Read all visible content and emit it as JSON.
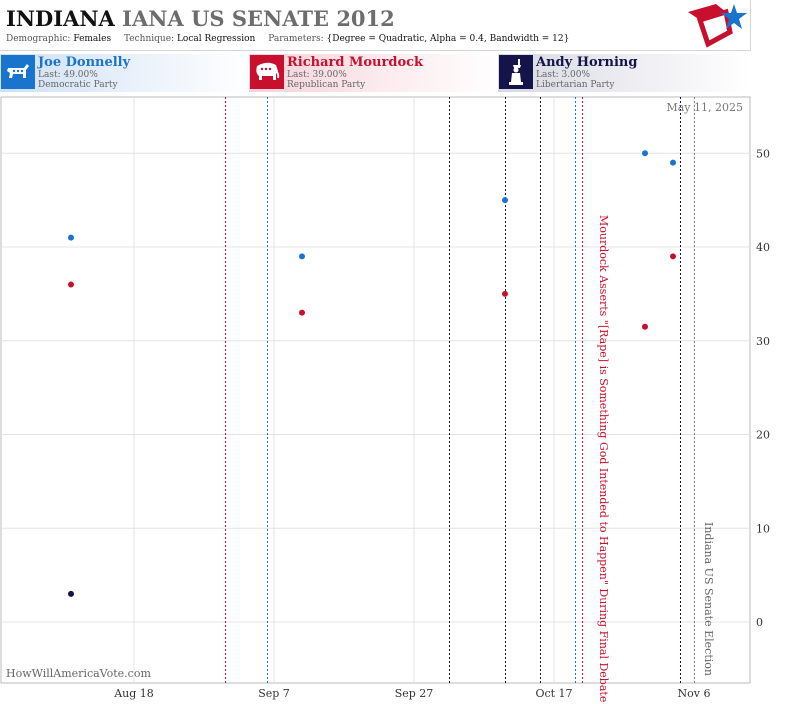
{
  "header": {
    "title_state": "INDIANA",
    "title_rest": "IANA US SENATE 2012",
    "demographic_label": "Demographic:",
    "demographic_value": "Females",
    "technique_label": "Technique:",
    "technique_value": "Local Regression",
    "parameters_label": "Parameters:",
    "parameters_value": "{Degree = Quadratic, Alpha = 0.4, Bandwidth = 12}"
  },
  "candidates": [
    {
      "name": "Joe Donnelly",
      "last": "Last: 49.00%",
      "party": "Democratic Party",
      "color": "#1874cd",
      "icon": "donkey-icon"
    },
    {
      "name": "Richard Mourdock",
      "last": "Last: 39.00%",
      "party": "Republican Party",
      "color": "#c8102e",
      "icon": "elephant-icon"
    },
    {
      "name": "Andy Horning",
      "last": "Last: 3.00%",
      "party": "Libertarian Party",
      "color": "#14144a",
      "icon": "statue-of-liberty-icon"
    }
  ],
  "date_stamp": "May 11, 2025",
  "watermark": "HowWillAmericaVote.com",
  "chart_data": {
    "type": "scatter",
    "x_axis": {
      "type": "date",
      "range": [
        "2012-07-30",
        "2012-11-14"
      ],
      "ticks": [
        {
          "date": "2012-08-18",
          "label": "Aug 18"
        },
        {
          "date": "2012-09-07",
          "label": "Sep 7"
        },
        {
          "date": "2012-09-27",
          "label": "Sep 27"
        },
        {
          "date": "2012-10-17",
          "label": "Oct 17"
        },
        {
          "date": "2012-11-06",
          "label": "Nov 6"
        }
      ]
    },
    "y_axis": {
      "range": [
        -6.5,
        56
      ],
      "ticks": [
        0,
        10,
        20,
        30,
        40,
        50
      ],
      "side": "right"
    },
    "grid": true,
    "series": [
      {
        "name": "Joe Donnelly",
        "color": "#1874cd",
        "points": [
          {
            "x": "2012-08-09",
            "y": 41
          },
          {
            "x": "2012-09-11",
            "y": 39
          },
          {
            "x": "2012-10-10",
            "y": 45
          },
          {
            "x": "2012-10-30",
            "y": 50
          },
          {
            "x": "2012-11-03",
            "y": 49
          }
        ]
      },
      {
        "name": "Richard Mourdock",
        "color": "#c8102e",
        "points": [
          {
            "x": "2012-08-09",
            "y": 36
          },
          {
            "x": "2012-09-11",
            "y": 33
          },
          {
            "x": "2012-10-10",
            "y": 35
          },
          {
            "x": "2012-10-30",
            "y": 31.5
          },
          {
            "x": "2012-11-03",
            "y": 39
          }
        ]
      },
      {
        "name": "Andy Horning",
        "color": "#14144a",
        "points": [
          {
            "x": "2012-08-09",
            "y": 3
          }
        ]
      }
    ],
    "event_lines": [
      {
        "x": "2012-08-31",
        "color": "#c8102e"
      },
      {
        "x": "2012-09-06",
        "color": "#1874cd"
      },
      {
        "x": "2012-10-02",
        "color": "#14144a"
      },
      {
        "x": "2012-10-10",
        "color": "#14144a"
      },
      {
        "x": "2012-10-15",
        "color": "#14144a"
      },
      {
        "x": "2012-10-20",
        "color": "#1874cd"
      },
      {
        "x": "2012-10-21",
        "color": "#c8102e"
      },
      {
        "x": "2012-11-04",
        "color": "#14144a"
      },
      {
        "x": "2012-11-06",
        "color": "#888888"
      }
    ],
    "annotations": [
      {
        "x": "2012-10-23",
        "text": "Mourdock Asserts \"[Rape] is Something God Intended to Happen\" During Final Debate",
        "color": "#c8102e"
      },
      {
        "x": "2012-11-07",
        "text": "Indiana US Senate Election",
        "color": "#666666"
      }
    ]
  }
}
